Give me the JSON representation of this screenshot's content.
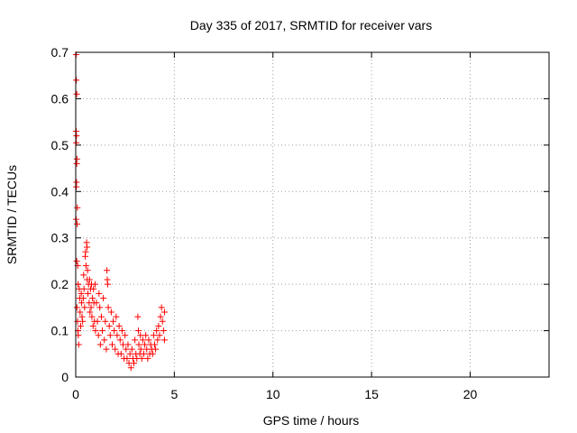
{
  "chart_data": {
    "type": "scatter",
    "title": "Day 335 of 2017, SRMTID for receiver vars",
    "xlabel": "GPS time / hours",
    "ylabel": "SRMTID / TECUs",
    "xlim": [
      0,
      24
    ],
    "ylim": [
      0,
      0.7
    ],
    "xticks": [
      0,
      5,
      10,
      15,
      20
    ],
    "yticks": [
      0,
      0.1,
      0.2,
      0.3,
      0.4,
      0.5,
      0.6,
      0.7
    ],
    "xtick_labels": [
      "0",
      "5",
      "10",
      "15",
      "20"
    ],
    "ytick_labels": [
      "0",
      "0.1",
      "0.2",
      "0.3",
      "0.4",
      "0.5",
      "0.6",
      "0.7"
    ],
    "grid": true,
    "marker": "+",
    "series": [
      {
        "name": "receiver vars",
        "color": "#ff0000",
        "points": [
          [
            0.02,
            0.695
          ],
          [
            0.03,
            0.64
          ],
          [
            0.05,
            0.61
          ],
          [
            0.02,
            0.53
          ],
          [
            0.04,
            0.52
          ],
          [
            0.03,
            0.505
          ],
          [
            0.06,
            0.47
          ],
          [
            0.05,
            0.46
          ],
          [
            0.04,
            0.42
          ],
          [
            0.03,
            0.41
          ],
          [
            0.08,
            0.365
          ],
          [
            0.02,
            0.34
          ],
          [
            0.07,
            0.33
          ],
          [
            0.05,
            0.25
          ],
          [
            0.1,
            0.24
          ],
          [
            0.12,
            0.2
          ],
          [
            0.06,
            0.15
          ],
          [
            0.09,
            0.12
          ],
          [
            0.11,
            0.1
          ],
          [
            0.13,
            0.09
          ],
          [
            0.15,
            0.07
          ],
          [
            0.18,
            0.19
          ],
          [
            0.2,
            0.17
          ],
          [
            0.22,
            0.14
          ],
          [
            0.25,
            0.11
          ],
          [
            0.28,
            0.18
          ],
          [
            0.3,
            0.16
          ],
          [
            0.32,
            0.13
          ],
          [
            0.35,
            0.12
          ],
          [
            0.38,
            0.17
          ],
          [
            0.4,
            0.22
          ],
          [
            0.42,
            0.19
          ],
          [
            0.45,
            0.15
          ],
          [
            0.48,
            0.26
          ],
          [
            0.5,
            0.27
          ],
          [
            0.52,
            0.24
          ],
          [
            0.55,
            0.29
          ],
          [
            0.57,
            0.28
          ],
          [
            0.58,
            0.21
          ],
          [
            0.6,
            0.23
          ],
          [
            0.62,
            0.18
          ],
          [
            0.65,
            0.2
          ],
          [
            0.68,
            0.16
          ],
          [
            0.7,
            0.21
          ],
          [
            0.72,
            0.14
          ],
          [
            0.75,
            0.19
          ],
          [
            0.78,
            0.15
          ],
          [
            0.8,
            0.2
          ],
          [
            0.82,
            0.13
          ],
          [
            0.85,
            0.17
          ],
          [
            0.88,
            0.11
          ],
          [
            0.9,
            0.19
          ],
          [
            0.92,
            0.16
          ],
          [
            0.95,
            0.12
          ],
          [
            0.98,
            0.2
          ],
          [
            1.0,
            0.1
          ],
          [
            1.05,
            0.16
          ],
          [
            1.1,
            0.12
          ],
          [
            1.15,
            0.09
          ],
          [
            1.18,
            0.18
          ],
          [
            1.22,
            0.15
          ],
          [
            1.25,
            0.07
          ],
          [
            1.3,
            0.13
          ],
          [
            1.35,
            0.1
          ],
          [
            1.4,
            0.17
          ],
          [
            1.45,
            0.08
          ],
          [
            1.5,
            0.12
          ],
          [
            1.55,
            0.06
          ],
          [
            1.58,
            0.23
          ],
          [
            1.6,
            0.21
          ],
          [
            1.62,
            0.2
          ],
          [
            1.65,
            0.15
          ],
          [
            1.7,
            0.11
          ],
          [
            1.75,
            0.09
          ],
          [
            1.8,
            0.14
          ],
          [
            1.85,
            0.07
          ],
          [
            1.9,
            0.12
          ],
          [
            1.95,
            0.1
          ],
          [
            2.0,
            0.06
          ],
          [
            2.05,
            0.13
          ],
          [
            2.1,
            0.09
          ],
          [
            2.15,
            0.05
          ],
          [
            2.2,
            0.11
          ],
          [
            2.25,
            0.08
          ],
          [
            2.3,
            0.05
          ],
          [
            2.35,
            0.1
          ],
          [
            2.4,
            0.07
          ],
          [
            2.45,
            0.04
          ],
          [
            2.5,
            0.09
          ],
          [
            2.55,
            0.06
          ],
          [
            2.6,
            0.04
          ],
          [
            2.65,
            0.07
          ],
          [
            2.7,
            0.03
          ],
          [
            2.75,
            0.05
          ],
          [
            2.8,
            0.02
          ],
          [
            2.85,
            0.06
          ],
          [
            2.9,
            0.04
          ],
          [
            2.95,
            0.03
          ],
          [
            3.0,
            0.08
          ],
          [
            3.05,
            0.05
          ],
          [
            3.1,
            0.04
          ],
          [
            3.15,
            0.13
          ],
          [
            3.18,
            0.1
          ],
          [
            3.2,
            0.07
          ],
          [
            3.25,
            0.05
          ],
          [
            3.28,
            0.09
          ],
          [
            3.3,
            0.06
          ],
          [
            3.35,
            0.04
          ],
          [
            3.4,
            0.08
          ],
          [
            3.45,
            0.05
          ],
          [
            3.5,
            0.07
          ],
          [
            3.55,
            0.09
          ],
          [
            3.6,
            0.06
          ],
          [
            3.65,
            0.04
          ],
          [
            3.7,
            0.08
          ],
          [
            3.75,
            0.05
          ],
          [
            3.8,
            0.07
          ],
          [
            3.85,
            0.06
          ],
          [
            3.9,
            0.05
          ],
          [
            3.95,
            0.09
          ],
          [
            4.0,
            0.07
          ],
          [
            4.05,
            0.06
          ],
          [
            4.1,
            0.1
          ],
          [
            4.15,
            0.08
          ],
          [
            4.2,
            0.11
          ],
          [
            4.25,
            0.09
          ],
          [
            4.3,
            0.13
          ],
          [
            4.35,
            0.15
          ],
          [
            4.4,
            0.12
          ],
          [
            4.45,
            0.1
          ],
          [
            4.5,
            0.14
          ],
          [
            4.5,
            0.08
          ]
        ]
      }
    ]
  }
}
